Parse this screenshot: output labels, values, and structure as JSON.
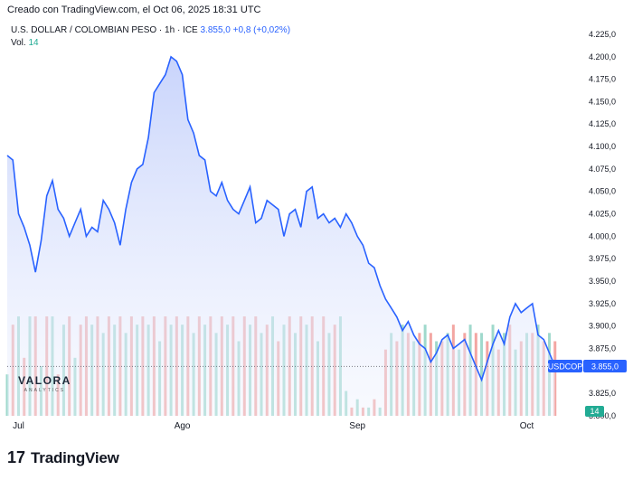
{
  "header": {
    "text": "Creado con TradingView.com, el Oct 06, 2025 18:31 UTC"
  },
  "legend": {
    "symbol": "U.S. DOLLAR / COLOMBIAN PESO · 1h · ICE",
    "last": "3.855,0",
    "change": "+0,8 (+0,02%)",
    "vol_label": "Vol.",
    "vol_value": "14"
  },
  "watermark": {
    "name": "VALORA",
    "sub": "ANALYTICS"
  },
  "footer": {
    "logo_mark": "17",
    "logo_text": "TradingView"
  },
  "colors": {
    "line": "#2962ff",
    "fill_top": "#c6d2fb",
    "vol_up": "#9fd9cc",
    "vol_down": "#f3a6a2",
    "tag_bg": "#2962ff"
  },
  "chart_data": {
    "type": "area",
    "symbol_tag": "USDCOP",
    "price_tag": "3.855,0",
    "volume_tag": "14",
    "x_labels": [
      {
        "label": "Jul",
        "t": 2
      },
      {
        "label": "Ago",
        "t": 31
      },
      {
        "label": "Sep",
        "t": 62
      },
      {
        "label": "Oct",
        "t": 92
      }
    ],
    "y_ticks": [
      "4.225,0",
      "4.200,0",
      "4.175,0",
      "4.150,0",
      "4.125,0",
      "4.100,0",
      "4.075,0",
      "4.050,0",
      "4.025,0",
      "4.000,0",
      "3.975,0",
      "3.950,0",
      "3.925,0",
      "3.900,0",
      "3.875,0",
      "3.825,0",
      "3.800,0"
    ],
    "y_tick_values": [
      4225,
      4200,
      4175,
      4150,
      4125,
      4100,
      4075,
      4050,
      4025,
      4000,
      3975,
      3950,
      3925,
      3900,
      3875,
      3825,
      3800
    ],
    "ylim": [
      3800,
      4235
    ],
    "xlim": [
      0,
      98
    ],
    "last_price": 3855,
    "x": [
      0,
      1,
      2,
      3,
      4,
      5,
      6,
      7,
      8,
      9,
      10,
      11,
      12,
      13,
      14,
      15,
      16,
      17,
      18,
      19,
      20,
      21,
      22,
      23,
      24,
      25,
      26,
      27,
      28,
      29,
      30,
      31,
      32,
      33,
      34,
      35,
      36,
      37,
      38,
      39,
      40,
      41,
      42,
      43,
      44,
      45,
      46,
      47,
      48,
      49,
      50,
      51,
      52,
      53,
      54,
      55,
      56,
      57,
      58,
      59,
      60,
      61,
      62,
      63,
      64,
      65,
      66,
      67,
      68,
      69,
      70,
      71,
      72,
      73,
      74,
      75,
      76,
      77,
      78,
      79,
      80,
      81,
      82,
      83,
      84,
      85,
      86,
      87,
      88,
      89,
      90,
      91,
      92,
      93,
      94,
      95,
      96,
      97
    ],
    "price": [
      4090,
      4085,
      4025,
      4010,
      3990,
      3960,
      3995,
      4045,
      4062,
      4030,
      4020,
      4000,
      4015,
      4030,
      4000,
      4010,
      4005,
      4040,
      4030,
      4015,
      3990,
      4030,
      4060,
      4075,
      4080,
      4110,
      4160,
      4170,
      4180,
      4200,
      4195,
      4180,
      4130,
      4115,
      4090,
      4085,
      4050,
      4045,
      4060,
      4040,
      4030,
      4025,
      4040,
      4055,
      4015,
      4020,
      4040,
      4035,
      4030,
      4000,
      4025,
      4030,
      4010,
      4050,
      4055,
      4020,
      4025,
      4015,
      4020,
      4010,
      4025,
      4015,
      4000,
      3990,
      3970,
      3965,
      3945,
      3930,
      3920,
      3910,
      3895,
      3905,
      3890,
      3880,
      3875,
      3860,
      3870,
      3885,
      3890,
      3875,
      3880,
      3885,
      3870,
      3855,
      3840,
      3860,
      3880,
      3895,
      3880,
      3910,
      3925,
      3915,
      3920,
      3925,
      3890,
      3885,
      3870,
      3855
    ],
    "volume": [
      5,
      11,
      12,
      7,
      12,
      12,
      6,
      12,
      12,
      5,
      11,
      12,
      7,
      11,
      12,
      11,
      12,
      10,
      12,
      11,
      12,
      10,
      12,
      11,
      12,
      11,
      12,
      9,
      12,
      11,
      12,
      11,
      12,
      10,
      12,
      11,
      12,
      10,
      12,
      11,
      12,
      9,
      12,
      11,
      12,
      10,
      11,
      12,
      9,
      11,
      12,
      10,
      12,
      11,
      12,
      9,
      12,
      10,
      11,
      12,
      3,
      1,
      2,
      1,
      1,
      2,
      1,
      8,
      10,
      9,
      11,
      10,
      9,
      10,
      11,
      10,
      9,
      9,
      10,
      11,
      8,
      10,
      11,
      10,
      10,
      9,
      11,
      8,
      10,
      11,
      8,
      9,
      10,
      10,
      11,
      9,
      10,
      9
    ],
    "volume_up": [
      true,
      false,
      true,
      false,
      true,
      false,
      true,
      false,
      true,
      false,
      true,
      false,
      true,
      false,
      false,
      true,
      false,
      true,
      false,
      true,
      false,
      true,
      false,
      true,
      false,
      true,
      false,
      true,
      false,
      true,
      false,
      true,
      false,
      true,
      false,
      true,
      false,
      true,
      false,
      true,
      false,
      true,
      false,
      true,
      false,
      true,
      false,
      true,
      false,
      true,
      false,
      true,
      false,
      true,
      false,
      true,
      false,
      true,
      false,
      true,
      true,
      false,
      true,
      false,
      true,
      false,
      true,
      false,
      true,
      false,
      true,
      false,
      true,
      false,
      true,
      false,
      true,
      false,
      true,
      false,
      true,
      false,
      true,
      false,
      true,
      false,
      true,
      false,
      true,
      false,
      true,
      false,
      true,
      false,
      true,
      false,
      true,
      false
    ]
  }
}
